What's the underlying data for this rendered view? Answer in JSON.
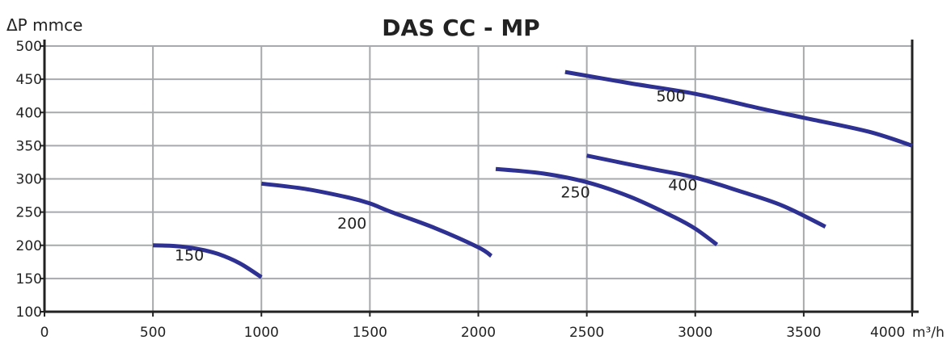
{
  "chart_data": {
    "type": "line",
    "title": "DAS CC - MP",
    "ylabel": "ΔP mmce",
    "xlabel": "m³/h",
    "xlim": [
      0,
      4000
    ],
    "ylim": [
      100,
      500
    ],
    "x_ticks": [
      "0",
      "500",
      "1000",
      "1500",
      "2000",
      "2500",
      "3000",
      "3500",
      "4000"
    ],
    "y_ticks": [
      "100",
      "150",
      "200",
      "250",
      "300",
      "350",
      "400",
      "450",
      "500"
    ],
    "grid": true,
    "line_color": "#2e3192",
    "series": [
      {
        "name": "150",
        "points": [
          [
            500,
            200
          ],
          [
            600,
            199
          ],
          [
            700,
            195
          ],
          [
            800,
            187
          ],
          [
            900,
            173
          ],
          [
            1000,
            152
          ]
        ]
      },
      {
        "name": "200",
        "points": [
          [
            1000,
            293
          ],
          [
            1200,
            285
          ],
          [
            1400,
            272
          ],
          [
            1500,
            263
          ],
          [
            1600,
            250
          ],
          [
            1800,
            226
          ],
          [
            2000,
            197
          ],
          [
            2060,
            184
          ]
        ]
      },
      {
        "name": "250",
        "points": [
          [
            2080,
            315
          ],
          [
            2300,
            308
          ],
          [
            2500,
            295
          ],
          [
            2700,
            273
          ],
          [
            2900,
            243
          ],
          [
            3000,
            225
          ],
          [
            3100,
            201
          ]
        ]
      },
      {
        "name": "400",
        "points": [
          [
            2500,
            335
          ],
          [
            2800,
            315
          ],
          [
            3000,
            302
          ],
          [
            3200,
            282
          ],
          [
            3400,
            260
          ],
          [
            3600,
            228
          ]
        ]
      },
      {
        "name": "500",
        "points": [
          [
            2400,
            461
          ],
          [
            2700,
            444
          ],
          [
            3000,
            428
          ],
          [
            3300,
            406
          ],
          [
            3500,
            392
          ],
          [
            3800,
            371
          ],
          [
            4000,
            350
          ]
        ]
      }
    ]
  }
}
